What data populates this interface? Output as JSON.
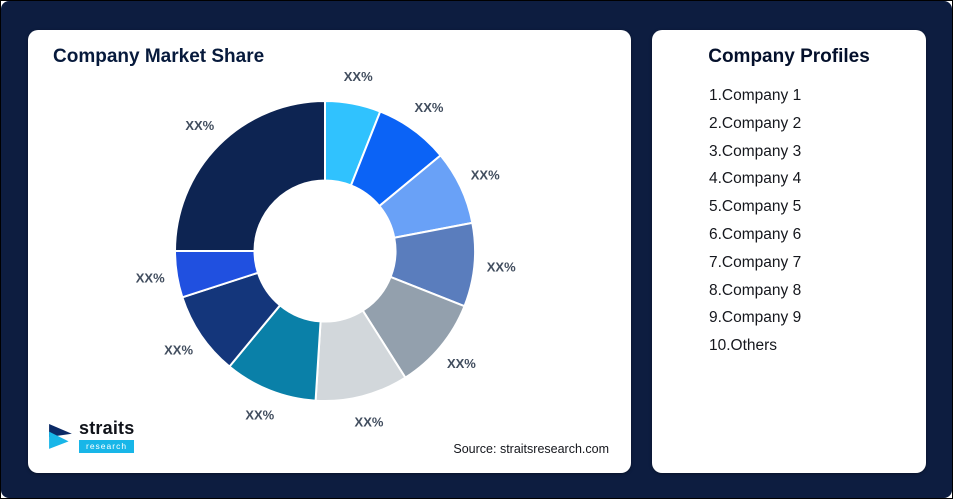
{
  "page": {
    "bg_color": "#0d1d40"
  },
  "chart_card": {
    "title": "Company Market Share",
    "source": "Source: straitsresearch.com"
  },
  "logo": {
    "name": "straits",
    "sub": "research"
  },
  "profiles": {
    "title": "Company Profiles",
    "items": [
      {
        "label": "1.Company 1"
      },
      {
        "label": "2.Company 2"
      },
      {
        "label": "3.Company 3"
      },
      {
        "label": "4.Company 4"
      },
      {
        "label": "5.Company 5"
      },
      {
        "label": "6.Company 6"
      },
      {
        "label": "7.Company 7"
      },
      {
        "label": "8.Company 8"
      },
      {
        "label": "9.Company 9"
      },
      {
        "label": "10.Others"
      }
    ]
  },
  "chart_data": {
    "type": "pie",
    "subtype": "donut",
    "title": "Company Market Share",
    "value_labels_shown": "XX% (placeholder percentages, no numeric data printed)",
    "start_angle_deg": 0,
    "clockwise": true,
    "inner_radius_ratio": 0.47,
    "segments": [
      {
        "name": "Company 1",
        "label": "XX%",
        "value": 6,
        "color": "#30c2fe"
      },
      {
        "name": "Company 2",
        "label": "XX%",
        "value": 8,
        "color": "#0b63f6"
      },
      {
        "name": "Company 3",
        "label": "XX%",
        "value": 8,
        "color": "#69a1f7"
      },
      {
        "name": "Company 4",
        "label": "XX%",
        "value": 9,
        "color": "#5a7dbd"
      },
      {
        "name": "Company 5",
        "label": "XX%",
        "value": 10,
        "color": "#93a0ad"
      },
      {
        "name": "Company 6",
        "label": "XX%",
        "value": 10,
        "color": "#d2d7db"
      },
      {
        "name": "Company 7",
        "label": "XX%",
        "value": 10,
        "color": "#0a80a8"
      },
      {
        "name": "Company 8",
        "label": "XX%",
        "value": 9,
        "color": "#14367b"
      },
      {
        "name": "Company 9",
        "label": "XX%",
        "value": 5,
        "color": "#2050e0"
      },
      {
        "name": "Others",
        "label": "XX%",
        "value": 25,
        "color": "#0d2452"
      }
    ]
  }
}
